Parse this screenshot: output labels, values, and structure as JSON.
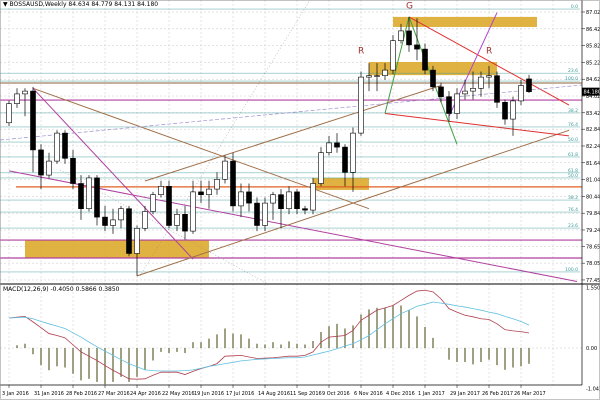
{
  "header": {
    "symbol": "BOSSAUSD,Weekly",
    "ohlc": "84.634 84.779 84.131 84.180"
  },
  "macd_header": {
    "label": "MACD(12,26,9)",
    "values": "-0.4050 0.5866 0.3850"
  },
  "colors": {
    "bull": "#ffffff",
    "bear": "#000000",
    "grid": "#c8c8c8",
    "zone": "#daa520",
    "macd_main": "#b04050",
    "macd_signal": "#60c0e0",
    "hist": "#606030",
    "fib": "#3c9a9a"
  },
  "chart_data": [
    {
      "type": "candlestick",
      "title": "BOSSAUSD,Weekly",
      "ylim": [
        77.455,
        87.3
      ],
      "price_ticks": [
        "87.025",
        "86.425",
        "85.825",
        "85.225",
        "84.625",
        "84.025",
        "83.425",
        "82.840",
        "82.240",
        "81.640",
        "81.040",
        "80.440",
        "79.840",
        "79.240",
        "78.655",
        "78.055",
        "77.455"
      ],
      "current_price": "84.180",
      "x_ticks": [
        {
          "date": "2016-01-03",
          "label": "3 Jan 2016"
        },
        {
          "date": "2016-01-31",
          "label": "31 Jan 2016"
        },
        {
          "date": "2016-02-28",
          "label": "28 Feb 2016"
        },
        {
          "date": "2016-03-27",
          "label": "27 Mar 2016"
        },
        {
          "date": "2016-04-24",
          "label": "24 Apr 2016"
        },
        {
          "date": "2016-05-22",
          "label": "22 May 2016"
        },
        {
          "date": "2016-06-19",
          "label": "19 Jun 2016"
        },
        {
          "date": "2016-07-17",
          "label": "17 Jul 2016"
        },
        {
          "date": "2016-08-14",
          "label": "14 Aug 2016"
        },
        {
          "date": "2016-09-11",
          "label": "11 Sep 2016"
        },
        {
          "date": "2016-10-09",
          "label": "9 Oct 2016"
        },
        {
          "date": "2016-11-06",
          "label": "6 Nov 2016"
        },
        {
          "date": "2016-12-04",
          "label": "4 Dec 2016"
        },
        {
          "date": "2017-01-01",
          "label": "1 Jan 2017"
        },
        {
          "date": "2017-01-29",
          "label": "29 Jan 2017"
        },
        {
          "date": "2017-02-26",
          "label": "26 Feb 2017"
        },
        {
          "date": "2017-03-26",
          "label": "26 Mar 2017"
        }
      ],
      "grid": true,
      "candles_columns": [
        "date",
        "open",
        "high",
        "low",
        "close"
      ],
      "candles": [
        [
          "2016-01-03",
          83.07,
          83.86,
          82.96,
          83.75
        ],
        [
          "2016-01-10",
          83.75,
          84.3,
          83.6,
          84.1
        ],
        [
          "2016-01-17",
          84.1,
          84.3,
          83.3,
          84.2
        ],
        [
          "2016-01-24",
          84.2,
          84.35,
          81.3,
          82.1
        ],
        [
          "2016-01-31",
          82.1,
          82.3,
          80.7,
          81.2
        ],
        [
          "2016-02-07",
          81.2,
          82.0,
          81.1,
          81.7
        ],
        [
          "2016-02-14",
          81.7,
          82.8,
          81.6,
          82.7
        ],
        [
          "2016-02-21",
          82.7,
          82.8,
          81.6,
          81.8
        ],
        [
          "2016-02-28",
          81.8,
          82.1,
          80.7,
          80.9
        ],
        [
          "2016-03-06",
          80.9,
          81.2,
          79.6,
          80.0
        ],
        [
          "2016-03-13",
          80.0,
          81.2,
          79.9,
          81.1
        ],
        [
          "2016-03-20",
          81.1,
          81.2,
          79.4,
          79.7
        ],
        [
          "2016-03-27",
          79.7,
          80.1,
          79.2,
          79.4
        ],
        [
          "2016-04-03",
          79.4,
          80.0,
          79.1,
          79.6
        ],
        [
          "2016-04-10",
          79.6,
          80.1,
          79.3,
          80.0
        ],
        [
          "2016-04-17",
          80.0,
          80.1,
          78.3,
          78.4
        ],
        [
          "2016-04-24",
          78.4,
          79.4,
          77.6,
          79.3
        ],
        [
          "2016-05-01",
          79.3,
          80.1,
          79.2,
          79.9
        ],
        [
          "2016-05-08",
          79.9,
          80.6,
          79.8,
          80.5
        ],
        [
          "2016-05-15",
          80.5,
          81.0,
          80.4,
          80.8
        ],
        [
          "2016-05-22",
          80.8,
          81.0,
          79.3,
          79.4
        ],
        [
          "2016-05-29",
          79.4,
          80.0,
          79.2,
          79.8
        ],
        [
          "2016-06-05",
          79.8,
          80.1,
          78.9,
          79.2
        ],
        [
          "2016-06-12",
          79.2,
          81.0,
          79.1,
          80.6
        ],
        [
          "2016-06-19",
          80.6,
          81.0,
          80.2,
          80.5
        ],
        [
          "2016-06-26",
          80.5,
          81.0,
          80.0,
          80.7
        ],
        [
          "2016-07-03",
          80.7,
          81.3,
          80.5,
          81.05
        ],
        [
          "2016-07-10",
          81.05,
          81.9,
          80.9,
          81.7
        ],
        [
          "2016-07-17",
          81.7,
          82.0,
          79.9,
          80.1
        ],
        [
          "2016-07-24",
          80.1,
          80.9,
          79.7,
          80.6
        ],
        [
          "2016-07-31",
          80.6,
          80.9,
          79.9,
          80.2
        ],
        [
          "2016-08-07",
          80.2,
          80.4,
          79.2,
          79.4
        ],
        [
          "2016-08-14",
          79.4,
          80.4,
          79.2,
          80.2
        ],
        [
          "2016-08-21",
          80.2,
          80.6,
          79.6,
          80.5
        ],
        [
          "2016-08-28",
          80.5,
          80.7,
          79.3,
          80.0
        ],
        [
          "2016-09-04",
          80.0,
          80.8,
          79.8,
          80.6
        ],
        [
          "2016-09-11",
          80.6,
          80.7,
          79.8,
          80.0
        ],
        [
          "2016-09-18",
          80.0,
          80.1,
          79.8,
          79.95
        ],
        [
          "2016-09-25",
          79.95,
          81.1,
          79.8,
          80.9
        ],
        [
          "2016-10-02",
          80.9,
          82.2,
          80.8,
          82.0
        ],
        [
          "2016-10-09",
          82.0,
          82.6,
          81.9,
          82.35
        ],
        [
          "2016-10-16",
          82.35,
          82.7,
          82.0,
          82.2
        ],
        [
          "2016-10-23",
          82.2,
          82.3,
          80.8,
          81.3
        ],
        [
          "2016-10-30",
          81.3,
          82.9,
          80.6,
          82.7
        ],
        [
          "2016-11-06",
          82.7,
          84.9,
          82.6,
          84.7
        ],
        [
          "2016-11-13",
          84.7,
          85.2,
          84.2,
          84.75
        ],
        [
          "2016-11-20",
          84.75,
          85.2,
          84.2,
          84.75
        ],
        [
          "2016-11-27",
          84.75,
          85.2,
          84.6,
          84.95
        ],
        [
          "2016-12-04",
          84.95,
          86.2,
          84.8,
          86.0
        ],
        [
          "2016-12-11",
          86.0,
          86.6,
          85.9,
          86.35
        ],
        [
          "2016-12-18",
          86.35,
          86.85,
          85.6,
          85.85
        ],
        [
          "2016-12-25",
          85.85,
          86.8,
          85.3,
          85.7
        ],
        [
          "2017-01-01",
          85.7,
          85.9,
          84.8,
          84.95
        ],
        [
          "2017-01-08",
          84.95,
          85.1,
          84.2,
          84.35
        ],
        [
          "2017-01-15",
          84.35,
          84.5,
          83.8,
          84.0
        ],
        [
          "2017-01-22",
          84.0,
          84.2,
          83.1,
          83.4
        ],
        [
          "2017-01-29",
          83.4,
          84.3,
          83.2,
          84.1
        ],
        [
          "2017-02-05",
          84.1,
          84.6,
          83.9,
          84.2
        ],
        [
          "2017-02-12",
          84.2,
          84.9,
          83.9,
          84.3
        ],
        [
          "2017-02-19",
          84.3,
          84.9,
          84.0,
          84.7
        ],
        [
          "2017-02-26",
          84.7,
          85.1,
          84.3,
          84.75
        ],
        [
          "2017-03-05",
          84.75,
          84.9,
          83.6,
          83.8
        ],
        [
          "2017-03-12",
          83.8,
          83.9,
          83.0,
          83.2
        ],
        [
          "2017-03-19",
          83.2,
          84.0,
          82.6,
          83.85
        ],
        [
          "2017-03-26",
          83.85,
          84.6,
          83.7,
          84.4
        ],
        [
          "2017-04-02",
          84.634,
          84.779,
          84.131,
          84.18
        ]
      ],
      "fib_levels": [
        {
          "price": 87.13,
          "label": "0.0"
        },
        {
          "price": 84.84,
          "label": "23.6"
        },
        {
          "price": 84.56,
          "label": "100.0"
        },
        {
          "price": 83.42,
          "label": "38.2"
        },
        {
          "price": 82.92,
          "label": "76.4"
        },
        {
          "price": 82.38,
          "label": "50.0"
        },
        {
          "price": 81.85,
          "label": "61.8"
        },
        {
          "price": 81.28,
          "label": "61.8"
        },
        {
          "price": 81.1,
          "label": "50.0"
        },
        {
          "price": 80.31,
          "label": "38.2"
        },
        {
          "price": 79.88,
          "label": "76.4"
        },
        {
          "price": 79.31,
          "label": "23.6"
        },
        {
          "price": 77.74,
          "label": "100.0"
        }
      ],
      "horizontal_levels": [
        {
          "price": 84.49,
          "color": "#a08060",
          "from": "2016-01-03"
        },
        {
          "price": 83.88,
          "color": "#b040a0",
          "from": "2016-01-03"
        },
        {
          "price": 80.78,
          "color": "#e06020",
          "from": "2016-01-17"
        },
        {
          "price": 78.88,
          "color": "#b040a0",
          "from": "2016-01-03"
        },
        {
          "price": 78.24,
          "color": "#b040a0",
          "from": "2016-01-03"
        }
      ],
      "zones": [
        {
          "from": "2016-12-04",
          "to": "2017-04-09",
          "high": 86.85,
          "low": 86.49
        },
        {
          "from": "2016-11-13",
          "to": "2017-03-05",
          "high": 85.24,
          "low": 84.77
        },
        {
          "from": "2016-01-17",
          "to": "2016-06-26",
          "high": 78.88,
          "low": 78.24
        },
        {
          "from": "2016-09-25",
          "to": "2016-11-13",
          "high": 81.1,
          "low": 80.67
        }
      ],
      "trendlines": [
        {
          "color": "#a0704a",
          "p1": [
            "2016-01-24",
            84.3
          ],
          "p2": [
            "2016-11-13",
            80.0
          ]
        },
        {
          "color": "#b040a0",
          "p1": [
            "2016-01-24",
            84.3
          ],
          "p2": [
            "2016-06-12",
            78.2
          ]
        },
        {
          "color": "#b040a0",
          "p1": [
            "2016-01-03",
            81.35
          ],
          "p2": [
            "2017-05-14",
            77.4
          ]
        },
        {
          "color": "#a0704a",
          "p1": [
            "2016-04-24",
            77.6
          ],
          "p2": [
            "2017-05-07",
            82.8
          ]
        },
        {
          "color": "#a0704a",
          "p1": [
            "2016-05-01",
            80.99
          ],
          "p2": [
            "2017-01-15",
            84.4
          ]
        },
        {
          "color": "#e03030",
          "p1": [
            "2016-12-18",
            86.85
          ],
          "p2": [
            "2017-05-07",
            83.7
          ]
        },
        {
          "color": "#e03030",
          "p1": [
            "2016-11-27",
            83.4
          ],
          "p2": [
            "2017-05-07",
            82.6
          ]
        },
        {
          "color": "#40a040",
          "p1": [
            "2016-11-27",
            83.4
          ],
          "p2": [
            "2016-12-18",
            86.85
          ]
        },
        {
          "color": "#40a040",
          "p1": [
            "2016-12-18",
            86.85
          ],
          "p2": [
            "2017-01-29",
            82.3
          ]
        },
        {
          "color": "#b040d0",
          "p1": [
            "2017-01-22",
            83.3
          ],
          "p2": [
            "2017-03-05",
            87.0
          ]
        }
      ],
      "pattern_labels": [
        {
          "text": "G",
          "date": "2016-12-18",
          "price": 87.15
        },
        {
          "text": "R",
          "date": "2016-11-06",
          "price": 85.55
        },
        {
          "text": "R",
          "date": "2017-02-26",
          "price": 85.55
        }
      ]
    },
    {
      "type": "bar+line",
      "title": "MACD(12,26,9)",
      "ylim": [
        -1.0417,
        1.5503
      ],
      "y_ticks": [
        "1.5503",
        "0.00",
        "-1.0417"
      ],
      "histogram": [
        0,
        0.07,
        0.11,
        -0.16,
        -0.44,
        -0.57,
        -0.47,
        -0.5,
        -0.66,
        -0.83,
        -0.79,
        -0.87,
        -0.93,
        -0.87,
        -0.74,
        -0.87,
        -0.74,
        -0.56,
        -0.32,
        -0.1,
        -0.13,
        -0.1,
        -0.13,
        0.15,
        0.15,
        0.24,
        0.35,
        0.5,
        0.37,
        0.35,
        0.24,
        0.11,
        0.09,
        0.15,
        0.09,
        0.17,
        0.11,
        0.09,
        0.18,
        0.41,
        0.56,
        0.62,
        0.5,
        0.58,
        0.86,
        0.99,
        1.03,
        1.03,
        1.09,
        1.09,
        0.97,
        0.81,
        0.54,
        0.26,
        0,
        -0.3,
        -0.36,
        -0.36,
        -0.42,
        -0.36,
        -0.3,
        -0.44,
        -0.56,
        -0.5,
        -0.47,
        -0.405
      ],
      "series": [
        {
          "values": [
            0.77,
            0.79,
            0.81,
            0.67,
            0.52,
            0.37,
            0.32,
            0.26,
            0.08,
            -0.1,
            -0.21,
            -0.32,
            -0.45,
            -0.57,
            -0.68,
            -0.79,
            -0.8,
            -0.79,
            -0.7,
            -0.62,
            -0.62,
            -0.62,
            -0.68,
            -0.6,
            -0.53,
            -0.47,
            -0.4,
            -0.21,
            -0.2,
            -0.19,
            -0.23,
            -0.27,
            -0.26,
            -0.25,
            -0.23,
            -0.21,
            -0.21,
            -0.19,
            -0.1,
            0.15,
            0.28,
            0.3,
            0.32,
            0.45,
            0.71,
            0.84,
            0.97,
            1.03,
            1.09,
            1.22,
            1.35,
            1.46,
            1.48,
            1.44,
            1.26,
            1.01,
            0.92,
            0.84,
            0.8,
            0.75,
            0.73,
            0.62,
            0.47,
            0.44,
            0.42,
            0.385
          ],
          "color": "#b04050"
        },
        {
          "values": [
            0.77,
            0.78,
            0.79,
            0.75,
            0.68,
            0.62,
            0.56,
            0.5,
            0.39,
            0.28,
            0.15,
            0.03,
            -0.08,
            -0.19,
            -0.3,
            -0.4,
            -0.48,
            -0.56,
            -0.58,
            -0.59,
            -0.59,
            -0.59,
            -0.58,
            -0.56,
            -0.52,
            -0.47,
            -0.44,
            -0.4,
            -0.37,
            -0.33,
            -0.31,
            -0.29,
            -0.28,
            -0.27,
            -0.26,
            -0.25,
            -0.25,
            -0.23,
            -0.18,
            -0.13,
            -0.08,
            -0.02,
            0.05,
            0.11,
            0.21,
            0.32,
            0.47,
            0.62,
            0.75,
            0.88,
            0.97,
            1.07,
            1.12,
            1.18,
            1.15,
            1.12,
            1.08,
            1.05,
            1.01,
            0.97,
            0.92,
            0.88,
            0.81,
            0.75,
            0.68,
            0.5866
          ],
          "color": "#60c0e0"
        }
      ]
    }
  ]
}
